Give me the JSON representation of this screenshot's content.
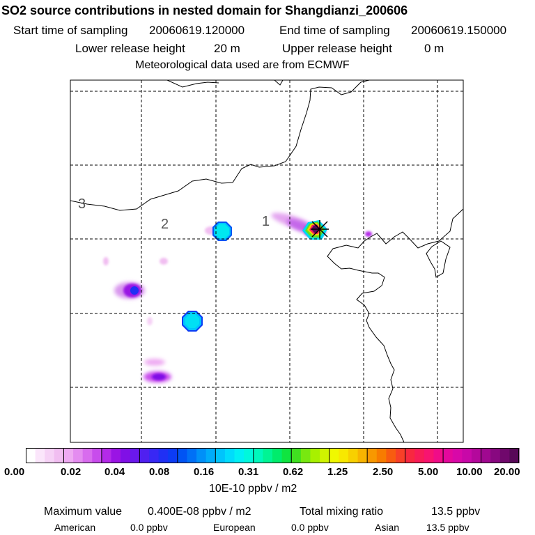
{
  "header": {
    "title": "SO2 source contributions in nested domain for Shangdianzi_200606",
    "start_label": "Start time of sampling",
    "start_value": "20060619.120000",
    "end_label": "End time of sampling",
    "end_value": "20060619.150000",
    "lower_label": "Lower release height",
    "lower_value": "20 m",
    "upper_label": "Upper release height",
    "upper_value": "0 m",
    "met_text": "Meteorological data used are from ECMWF"
  },
  "map": {
    "region_labels": [
      "3",
      "2",
      "1"
    ],
    "receptor_marker": "x-cross-icon",
    "colors": {
      "frame": "#000000",
      "grid": "#000000"
    }
  },
  "colorbar": {
    "tick_labels": [
      "0.00",
      "0.02",
      "0.04",
      "0.08",
      "0.16",
      "0.31",
      "0.62",
      "1.25",
      "2.50",
      "5.00",
      "10.00",
      "20.00"
    ],
    "colors": [
      "#ffffff",
      "#fbe6fb",
      "#f6d2f6",
      "#f1bef1",
      "#eeaaf2",
      "#e48cf0",
      "#d86cee",
      "#c84cec",
      "#b42ae8",
      "#9a14e4",
      "#8010e6",
      "#6a18ec",
      "#5020f0",
      "#3828f4",
      "#2030f4",
      "#0c3cf4",
      "#0054f4",
      "#0070f6",
      "#0090f8",
      "#00acfa",
      "#00c4fc",
      "#00dcfc",
      "#00f0f4",
      "#00f8dc",
      "#00f8bc",
      "#00f494",
      "#00ec6c",
      "#10e440",
      "#40e020",
      "#78e810",
      "#a8f000",
      "#d0f400",
      "#f0f800",
      "#f8e800",
      "#f8d000",
      "#f8b400",
      "#f89800",
      "#f87c00",
      "#f85c10",
      "#f84028",
      "#f82840",
      "#f81c58",
      "#f81470",
      "#f00c88",
      "#e4089c",
      "#d808a8",
      "#c808a8",
      "#b4089c",
      "#a00890",
      "#880880",
      "#70086c",
      "#580858"
    ],
    "unit_label": "10E-10 ppbv / m2"
  },
  "summary": {
    "max_label": "Maximum value",
    "max_value": "0.400E-08 ppbv / m2",
    "total_label": "Total mixing ratio",
    "total_value": "13.5 ppbv",
    "american_label": "American",
    "american_value": "0.0 ppbv",
    "european_label": "European",
    "european_value": "0.0 ppbv",
    "asian_label": "Asian",
    "asian_value": "13.5 ppbv"
  }
}
